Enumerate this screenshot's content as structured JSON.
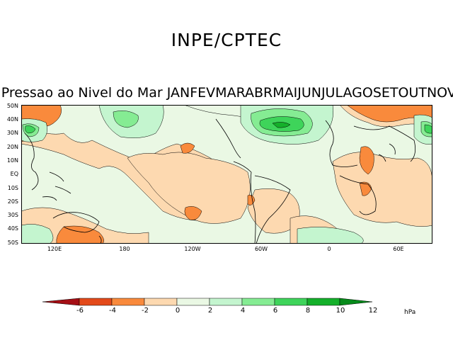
{
  "header": {
    "title": "INPE/CPTEC",
    "subtitle": "de Pressao ao Nivel do Mar JANFEVMARABRMAIJUNJULAGOSETOUTNOV"
  },
  "map": {
    "lat_labels": [
      "50N",
      "40N",
      "30N",
      "20N",
      "10N",
      "EQ",
      "10S",
      "20S",
      "30S",
      "40S",
      "50S"
    ],
    "lon_labels": [
      "120E",
      "180",
      "120W",
      "60W",
      "0",
      "60E"
    ]
  },
  "colorbar": {
    "labels": [
      "-6",
      "-4",
      "-2",
      "0",
      "2",
      "4",
      "6",
      "8",
      "10",
      "12"
    ],
    "unit": "hPa",
    "colors": [
      "#a50f15",
      "#e34a1a",
      "#f98a3c",
      "#fdd9b0",
      "#eaf8e4",
      "#c4f5cf",
      "#85ec93",
      "#3ed45a",
      "#14b02a",
      "#068a1a"
    ]
  }
}
